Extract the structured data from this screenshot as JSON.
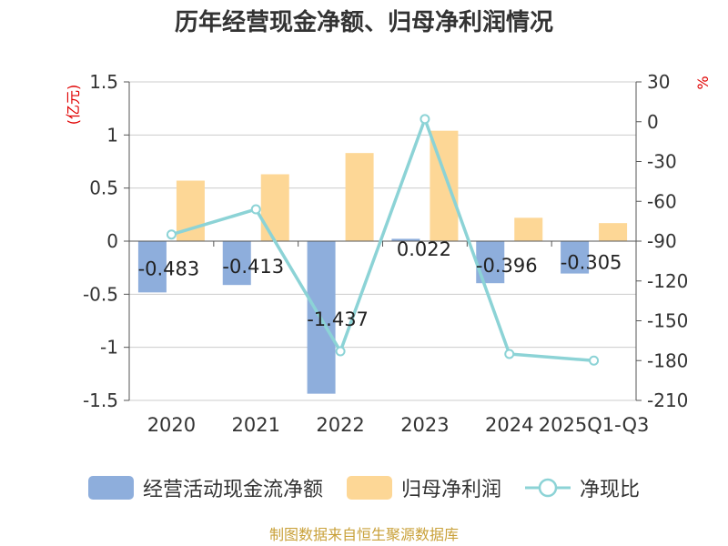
{
  "chart_data": {
    "type": "bar",
    "title": "历年经营现金净额、归母净利润情况",
    "categories": [
      "2020",
      "2021",
      "2022",
      "2023",
      "2024",
      "2025Q1-Q3"
    ],
    "left_axis": {
      "label": "(亿元)",
      "ylim": [
        -1.5,
        1.5
      ],
      "ticks": [
        "1.5",
        "1",
        "0.5",
        "0",
        "-0.5",
        "-1",
        "-1.5"
      ],
      "tick_values": [
        1.5,
        1,
        0.5,
        0,
        -0.5,
        -1,
        -1.5
      ]
    },
    "right_axis": {
      "label": "%",
      "ylim": [
        -210,
        30
      ],
      "ticks": [
        "30",
        "0",
        "-30",
        "-60",
        "-90",
        "-120",
        "-150",
        "-180",
        "-210"
      ],
      "tick_values": [
        30,
        0,
        -30,
        -60,
        -90,
        -120,
        -150,
        -180,
        -210
      ]
    },
    "series": [
      {
        "name": "经营活动现金流净额",
        "type": "bar",
        "axis": "left",
        "color": "#8eaedc",
        "values": [
          -0.483,
          -0.413,
          -1.437,
          0.022,
          -0.396,
          -0.305
        ],
        "labels": [
          "-0.483",
          "-0.413",
          "-1.437",
          "0.022",
          "-0.396",
          "-0.305"
        ]
      },
      {
        "name": "归母净利润",
        "type": "bar",
        "axis": "left",
        "color": "#fdd796",
        "values": [
          0.57,
          0.63,
          0.83,
          1.04,
          0.22,
          0.17
        ]
      },
      {
        "name": "净现比",
        "type": "line",
        "axis": "right",
        "color": "#8cd3d6",
        "values": [
          -85,
          -66,
          -173,
          2,
          -175,
          -180
        ]
      }
    ],
    "grid": true,
    "legend_position": "bottom"
  },
  "source": {
    "text": "制图数据来自恒生聚源数据库",
    "color": "#c9a13a"
  },
  "colors": {
    "title": "#333333",
    "axis_label": "#e00000",
    "grid": "#cccccc",
    "tick": "#333333"
  }
}
